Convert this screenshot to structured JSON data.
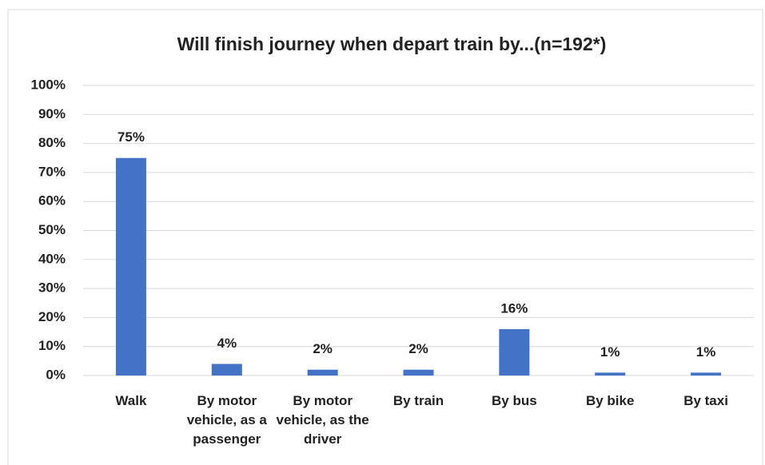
{
  "chart_data": {
    "type": "bar",
    "title": "Will finish journey when depart train by...(n=192*)",
    "categories": [
      "Walk",
      "By motor vehicle, as a passenger",
      "By motor vehicle, as the driver",
      "By train",
      "By bus",
      "By bike",
      "By taxi"
    ],
    "values": [
      75,
      4,
      2,
      2,
      16,
      1,
      1
    ],
    "value_labels": [
      "75%",
      "4%",
      "2%",
      "2%",
      "16%",
      "1%",
      "1%"
    ],
    "color": "#4472c4",
    "ylim": [
      0,
      100
    ],
    "yticks": [
      {
        "value": 0,
        "label": "0%"
      },
      {
        "value": 10,
        "label": "10%"
      },
      {
        "value": 20,
        "label": "20%"
      },
      {
        "value": 30,
        "label": "30%"
      },
      {
        "value": 40,
        "label": "40%"
      },
      {
        "value": 50,
        "label": "50%"
      },
      {
        "value": 60,
        "label": "60%"
      },
      {
        "value": 70,
        "label": "70%"
      },
      {
        "value": 80,
        "label": "80%"
      },
      {
        "value": 90,
        "label": "90%"
      },
      {
        "value": 100,
        "label": "100%"
      }
    ],
    "grid": true
  }
}
